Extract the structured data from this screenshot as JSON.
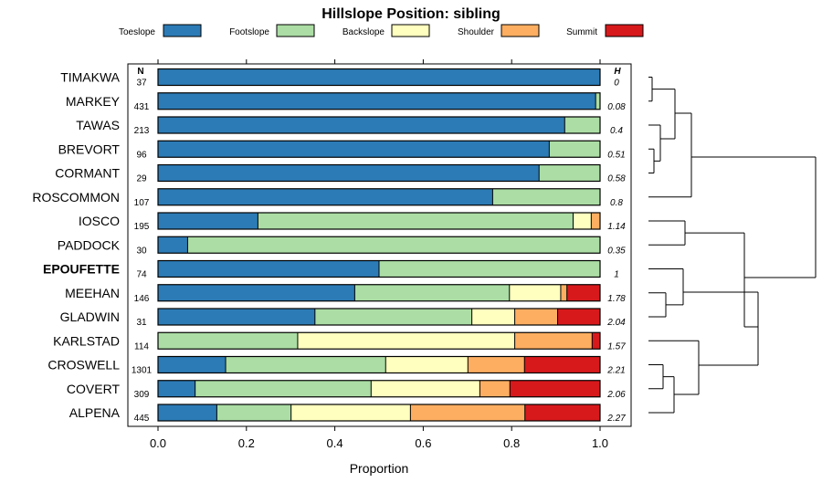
{
  "chart_data": {
    "type": "bar",
    "stacked": true,
    "orientation": "horizontal",
    "title": "Hillslope Position: sibling",
    "xlabel": "Proportion",
    "xlim": [
      0,
      1
    ],
    "xticks": [
      "0.0",
      "0.2",
      "0.4",
      "0.6",
      "0.8",
      "1.0"
    ],
    "legend_position": "top",
    "n_header": "N",
    "h_header": "H",
    "series": [
      {
        "name": "Toeslope",
        "color": "#2c7bb6"
      },
      {
        "name": "Footslope",
        "color": "#abdda4"
      },
      {
        "name": "Backslope",
        "color": "#ffffbf"
      },
      {
        "name": "Shoulder",
        "color": "#fdae61"
      },
      {
        "name": "Summit",
        "color": "#d7191c"
      }
    ],
    "rows": [
      {
        "name": "TIMAKWA",
        "n": "37",
        "h": "0",
        "bold": false,
        "values": [
          1.0,
          0,
          0,
          0,
          0
        ]
      },
      {
        "name": "MARKEY",
        "n": "431",
        "h": "0.08",
        "bold": false,
        "values": [
          0.99,
          0.01,
          0,
          0,
          0
        ]
      },
      {
        "name": "TAWAS",
        "n": "213",
        "h": "0.4",
        "bold": false,
        "values": [
          0.92,
          0.08,
          0,
          0,
          0
        ]
      },
      {
        "name": "BREVORT",
        "n": "96",
        "h": "0.51",
        "bold": false,
        "values": [
          0.885,
          0.115,
          0,
          0,
          0
        ]
      },
      {
        "name": "CORMANT",
        "n": "29",
        "h": "0.58",
        "bold": false,
        "values": [
          0.862,
          0.138,
          0,
          0,
          0
        ]
      },
      {
        "name": "ROSCOMMON",
        "n": "107",
        "h": "0.8",
        "bold": false,
        "values": [
          0.757,
          0.243,
          0,
          0,
          0
        ]
      },
      {
        "name": "IOSCO",
        "n": "195",
        "h": "1.14",
        "bold": false,
        "values": [
          0.226,
          0.713,
          0.041,
          0.02,
          0
        ]
      },
      {
        "name": "PADDOCK",
        "n": "30",
        "h": "0.35",
        "bold": false,
        "values": [
          0.067,
          0.933,
          0,
          0,
          0
        ]
      },
      {
        "name": "EPOUFETTE",
        "n": "74",
        "h": "1",
        "bold": true,
        "values": [
          0.5,
          0.5,
          0,
          0,
          0
        ]
      },
      {
        "name": "MEEHAN",
        "n": "146",
        "h": "1.78",
        "bold": false,
        "values": [
          0.445,
          0.35,
          0.116,
          0.014,
          0.075
        ]
      },
      {
        "name": "GLADWIN",
        "n": "31",
        "h": "2.04",
        "bold": false,
        "values": [
          0.355,
          0.355,
          0.097,
          0.097,
          0.096
        ]
      },
      {
        "name": "KARLSTAD",
        "n": "114",
        "h": "1.57",
        "bold": false,
        "values": [
          0,
          0.316,
          0.491,
          0.175,
          0.018
        ]
      },
      {
        "name": "CROSWELL",
        "n": "1301",
        "h": "2.21",
        "bold": false,
        "values": [
          0.153,
          0.362,
          0.186,
          0.128,
          0.171
        ]
      },
      {
        "name": "COVERT",
        "n": "309",
        "h": "2.06",
        "bold": false,
        "values": [
          0.084,
          0.398,
          0.246,
          0.068,
          0.204
        ]
      },
      {
        "name": "ALPENA",
        "n": "445",
        "h": "2.27",
        "bold": false,
        "values": [
          0.133,
          0.168,
          0.27,
          0.259,
          0.17
        ]
      }
    ]
  }
}
